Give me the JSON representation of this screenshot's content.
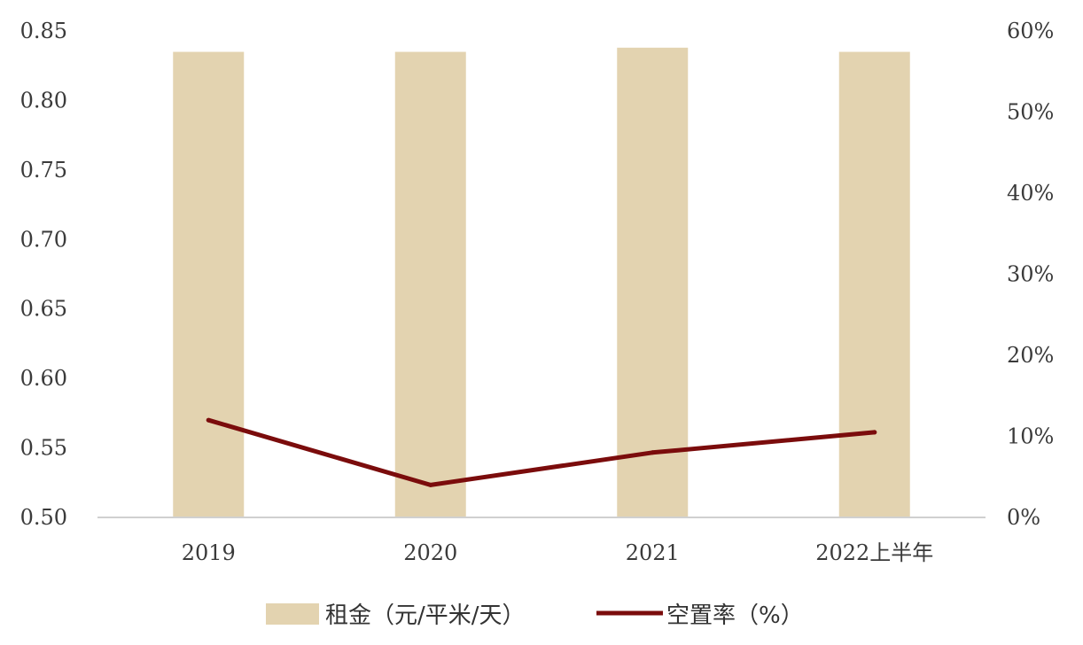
{
  "chart_data": {
    "type": "bar",
    "categories": [
      "2019",
      "2020",
      "2021",
      "2022上半年"
    ],
    "series": [
      {
        "name": "租金（元/平米/天）",
        "type": "bar",
        "axis": "left",
        "color": "#e3d3b0",
        "values": [
          0.835,
          0.835,
          0.838,
          0.835
        ]
      },
      {
        "name": "空置率（%）",
        "type": "line",
        "axis": "right",
        "color": "#7b0c0c",
        "values": [
          12,
          4,
          8,
          10.5
        ]
      }
    ],
    "y_left": {
      "ylim": [
        0.5,
        0.85
      ],
      "ticks": [
        "0.50",
        "0.55",
        "0.60",
        "0.65",
        "0.70",
        "0.75",
        "0.80",
        "0.85"
      ]
    },
    "y_right": {
      "ylim": [
        0,
        60
      ],
      "ticks": [
        "0%",
        "10%",
        "20%",
        "30%",
        "40%",
        "50%",
        "60%"
      ]
    },
    "grid": false,
    "legend_position": "bottom"
  }
}
